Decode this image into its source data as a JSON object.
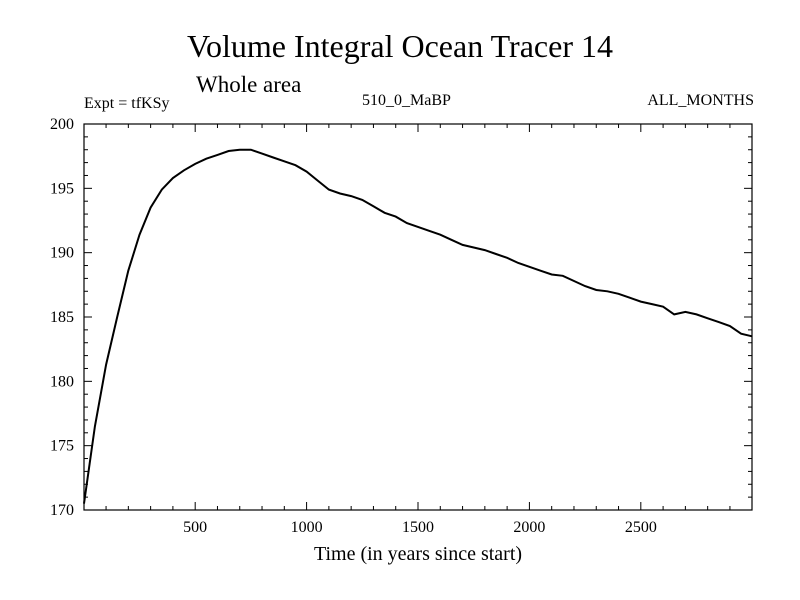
{
  "header": {
    "title": "Volume Integral Ocean Tracer 14",
    "subtitle": "Whole area",
    "expt": "Expt = tfKSy",
    "run": "510_0_MaBP",
    "months": "ALL_MONTHS"
  },
  "chart_data": {
    "type": "line",
    "title": "Volume Integral Ocean Tracer 14",
    "subtitle": "Whole area",
    "xlabel": "Time (in years since start)",
    "ylabel": "",
    "xlim": [
      1,
      2999
    ],
    "ylim": [
      170,
      200
    ],
    "x_ticks": [
      500,
      1000,
      1500,
      2000,
      2500
    ],
    "y_ticks": [
      170,
      175,
      180,
      185,
      190,
      195,
      200
    ],
    "grid": false,
    "color": "#000000",
    "series": [
      {
        "x": [
          1,
          50,
          100,
          150,
          200,
          250,
          300,
          350,
          400,
          450,
          500,
          550,
          600,
          650,
          700,
          750,
          800,
          850,
          900,
          950,
          1000,
          1050,
          1100,
          1150,
          1200,
          1250,
          1300,
          1350,
          1400,
          1450,
          1500,
          1550,
          1600,
          1650,
          1700,
          1750,
          1800,
          1850,
          1900,
          1950,
          2000,
          2050,
          2100,
          2150,
          2200,
          2250,
          2300,
          2350,
          2400,
          2450,
          2500,
          2550,
          2600,
          2650,
          2700,
          2750,
          2800,
          2850,
          2900,
          2950,
          2999
        ],
        "y": [
          170.5,
          176.5,
          181.3,
          185.0,
          188.6,
          191.4,
          193.5,
          194.9,
          195.8,
          196.4,
          196.9,
          197.3,
          197.6,
          197.9,
          198.0,
          198.0,
          197.7,
          197.4,
          197.1,
          196.8,
          196.3,
          195.6,
          194.9,
          194.6,
          194.4,
          194.1,
          193.6,
          193.1,
          192.8,
          192.3,
          192.0,
          191.7,
          191.4,
          191.0,
          190.6,
          190.4,
          190.2,
          189.9,
          189.6,
          189.2,
          188.9,
          188.6,
          188.3,
          188.2,
          187.8,
          187.4,
          187.1,
          187.0,
          186.8,
          186.5,
          186.2,
          186.0,
          185.8,
          185.2,
          185.4,
          185.2,
          184.9,
          184.6,
          184.3,
          183.7,
          183.5
        ]
      }
    ]
  }
}
